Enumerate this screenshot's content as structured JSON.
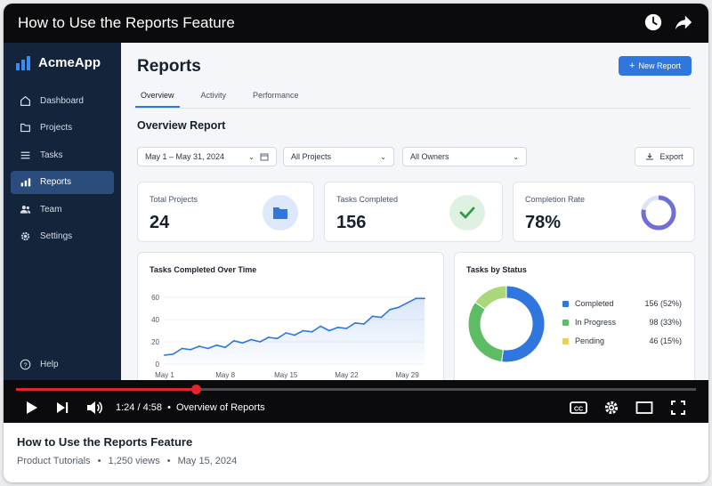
{
  "video": {
    "title": "How to Use the Reports Feature",
    "current_time": "1:24 / 4:58",
    "chapter": "Overview of Reports",
    "progress_fraction": 0.264,
    "progress_color": "#e3242b"
  },
  "app": {
    "brand": "AcmeApp",
    "nav": [
      {
        "label": "Dashboard",
        "icon": "home-icon"
      },
      {
        "label": "Projects",
        "icon": "folder-icon"
      },
      {
        "label": "Tasks",
        "icon": "list-icon"
      },
      {
        "label": "Reports",
        "icon": "bar-chart-icon",
        "active": true
      },
      {
        "label": "Team",
        "icon": "users-icon"
      },
      {
        "label": "Settings",
        "icon": "gear-icon"
      }
    ],
    "help_label": "Help",
    "page_title": "Reports",
    "new_report_label": "New Report",
    "tabs": [
      "Overview",
      "Activity",
      "Performance"
    ],
    "active_tab": "Overview",
    "section_title": "Overview Report",
    "filters": {
      "date_range": "May 1 – May 31, 2024",
      "project": "All Projects",
      "owner": "All Owners"
    },
    "export_label": "Export",
    "accent_color": "#2f76de",
    "stats": {
      "total_projects": {
        "label": "Total Projects",
        "value": "24"
      },
      "tasks_completed": {
        "label": "Tasks Completed",
        "value": "156"
      },
      "completion_rate": {
        "label": "Completion Rate",
        "value": "78%",
        "fraction": 0.78
      }
    }
  },
  "chart_data": [
    {
      "type": "area",
      "title": "Tasks Completed Over Time",
      "x_ticks": [
        "May 1",
        "May 8",
        "May 15",
        "May 22",
        "May 29"
      ],
      "y_ticks": [
        "0",
        "20",
        "40",
        "60"
      ],
      "ylim": [
        0,
        60
      ],
      "x": [
        1,
        2,
        3,
        4,
        5,
        6,
        7,
        8,
        9,
        10,
        11,
        12,
        13,
        14,
        15,
        16,
        17,
        18,
        19,
        20,
        21,
        22,
        23,
        24,
        25,
        26,
        27,
        28,
        29,
        30,
        31
      ],
      "values": [
        8,
        9,
        14,
        13,
        16,
        14,
        17,
        15,
        21,
        19,
        22,
        20,
        24,
        23,
        28,
        26,
        30,
        29,
        34,
        30,
        33,
        32,
        37,
        36,
        43,
        42,
        49,
        51,
        55,
        59,
        59
      ],
      "color": "#2f76de"
    },
    {
      "type": "pie",
      "title": "Tasks by Status",
      "donut": true,
      "slices": [
        {
          "label": "Completed",
          "value": 156,
          "text": "156 (52%)",
          "color": "#2f76de"
        },
        {
          "label": "In Progress",
          "value": 98,
          "text": "98 (33%)",
          "color": "#5cbd65"
        },
        {
          "label": "Pending",
          "value": 46,
          "text": "46 (15%)",
          "color": "#a9d77a"
        }
      ]
    }
  ],
  "footer": {
    "title": "How to Use the Reports Feature",
    "channel": "Product Tutorials",
    "views": "1,250 views",
    "date": "May 15, 2024",
    "separator": "•"
  }
}
